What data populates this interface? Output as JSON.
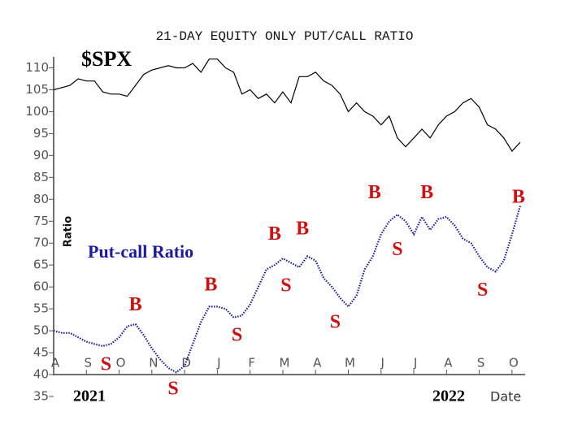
{
  "chart_data": {
    "type": "line",
    "title": "21-DAY EQUITY ONLY PUT/CALL RATIO",
    "y_label": "Ratio",
    "x_label": "Date",
    "year_labels": [
      "2021",
      "2022"
    ],
    "x": [
      0,
      0.25,
      0.5,
      0.75,
      1,
      1.25,
      1.5,
      1.75,
      2,
      2.25,
      2.5,
      2.75,
      3,
      3.25,
      3.5,
      3.75,
      4,
      4.25,
      4.5,
      4.75,
      5,
      5.25,
      5.5,
      5.75,
      6,
      6.25,
      6.5,
      6.75,
      7,
      7.25,
      7.5,
      7.75,
      8,
      8.25,
      8.5,
      8.75,
      9,
      9.25,
      9.5,
      9.75,
      10,
      10.25,
      10.5,
      10.75,
      11,
      11.25,
      11.5,
      11.75,
      12,
      12.25,
      12.5,
      12.75,
      13,
      13.25,
      13.5,
      13.75,
      14,
      14.25
    ],
    "series": [
      {
        "name": "$SPX",
        "color": "#000000",
        "style": "solid",
        "values": [
          105,
          105.5,
          106,
          107.5,
          107,
          107,
          104.5,
          104,
          104,
          103.5,
          106,
          108.5,
          109.5,
          110,
          110.5,
          110,
          110,
          111,
          109,
          112,
          112,
          110,
          109,
          104,
          105,
          103,
          104,
          102,
          104.5,
          102,
          108,
          108,
          109,
          107,
          106,
          104,
          100,
          102,
          100,
          99,
          97,
          99,
          94,
          92,
          94,
          96,
          94,
          97,
          99,
          100,
          102,
          103,
          101,
          97,
          96,
          94,
          91,
          93
        ]
      },
      {
        "name": "Put-call Ratio",
        "color": "#1a1aa6",
        "style": "dotted",
        "values": [
          50,
          49.5,
          49.5,
          48.5,
          47.5,
          47,
          46.5,
          47,
          48.5,
          51,
          51.5,
          49,
          46,
          43.5,
          41.5,
          40.5,
          42,
          47,
          52,
          55.5,
          55.5,
          55,
          53,
          53.5,
          56,
          60,
          64,
          65,
          66.5,
          65.5,
          64.5,
          67,
          66,
          62,
          60,
          57.5,
          55.5,
          58,
          64,
          67,
          72,
          75,
          76.5,
          75,
          72,
          76,
          73,
          75.5,
          76,
          74,
          71,
          70,
          67,
          64.5,
          63.5,
          66,
          72,
          78.5
        ]
      }
    ],
    "xlim": [
      0,
      14.4
    ],
    "xticks": [
      {
        "value": 0,
        "label": "A"
      },
      {
        "value": 1,
        "label": "S"
      },
      {
        "value": 2,
        "label": "O"
      },
      {
        "value": 3,
        "label": "N"
      },
      {
        "value": 4,
        "label": "D"
      },
      {
        "value": 5,
        "label": "J"
      },
      {
        "value": 6,
        "label": "F"
      },
      {
        "value": 7,
        "label": "M"
      },
      {
        "value": 8,
        "label": "A"
      },
      {
        "value": 9,
        "label": "M"
      },
      {
        "value": 10,
        "label": "J"
      },
      {
        "value": 11,
        "label": "J"
      },
      {
        "value": 12,
        "label": "A"
      },
      {
        "value": 13,
        "label": "S"
      },
      {
        "value": 14,
        "label": "O"
      }
    ],
    "ylim": [
      35,
      112.5
    ],
    "yticks": [
      35,
      40,
      45,
      50,
      55,
      60,
      65,
      70,
      75,
      80,
      85,
      90,
      95,
      100,
      105,
      110
    ],
    "annotation_color": "#d01010",
    "annotations": [
      {
        "text": "S",
        "x": 1.6,
        "y": 42
      },
      {
        "text": "B",
        "x": 2.5,
        "y": 55.7
      },
      {
        "text": "S",
        "x": 3.65,
        "y": 36.5
      },
      {
        "text": "B",
        "x": 4.8,
        "y": 60.2
      },
      {
        "text": "S",
        "x": 5.6,
        "y": 48.7
      },
      {
        "text": "B",
        "x": 6.75,
        "y": 71.8
      },
      {
        "text": "S",
        "x": 7.1,
        "y": 60
      },
      {
        "text": "B",
        "x": 7.6,
        "y": 73
      },
      {
        "text": "S",
        "x": 8.6,
        "y": 51.7
      },
      {
        "text": "B",
        "x": 9.8,
        "y": 81.3
      },
      {
        "text": "S",
        "x": 10.5,
        "y": 68.3
      },
      {
        "text": "B",
        "x": 11.4,
        "y": 81.3
      },
      {
        "text": "S",
        "x": 13.1,
        "y": 59
      },
      {
        "text": "B",
        "x": 14.2,
        "y": 80.2
      }
    ]
  }
}
